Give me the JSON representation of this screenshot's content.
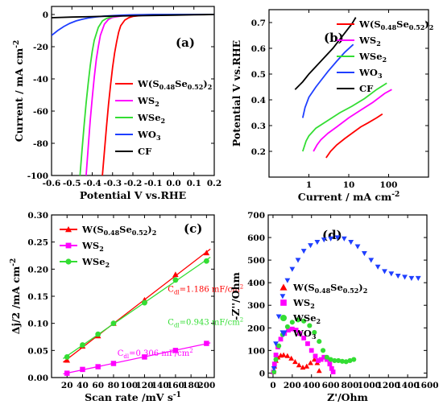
{
  "colors": {
    "W(S0.48Se0.52)2": "#ff0000",
    "WS2": "#ff00ff",
    "WSe2": "#33dd33",
    "WO3": "#1f3fff",
    "CF": "#000000"
  },
  "chart_data": [
    {
      "panel": "(a)",
      "type": "line",
      "xlabel": "Potential V vs.RHE",
      "ylabel": "Current / mA cm",
      "ylabel_sup": "-2",
      "xlim": [
        -0.6,
        0.2
      ],
      "ylim": [
        -100,
        5
      ],
      "xticks": [
        "-0.6",
        "-0.5",
        "-0.4",
        "-0.3",
        "-0.2",
        "-0.1",
        "0.0",
        "0.1",
        "0.2"
      ],
      "yticks": [
        "0",
        "-20",
        "-40",
        "-60",
        "-80",
        "-100"
      ],
      "legend": [
        "W(S0.48Se0.52)2",
        "WS2",
        "WSe2",
        "WO3",
        "CF"
      ],
      "series": [
        {
          "name": "W(S0.48Se0.52)2",
          "x": [
            -0.35,
            -0.34,
            -0.33,
            -0.32,
            -0.31,
            -0.3,
            -0.29,
            -0.28,
            -0.27,
            -0.26,
            -0.24,
            -0.22,
            -0.2,
            -0.15,
            -0.1,
            0.0,
            0.2
          ],
          "y": [
            -100,
            -85,
            -70,
            -56,
            -44,
            -33,
            -24,
            -17,
            -11,
            -7,
            -3.5,
            -2,
            -1.2,
            -0.5,
            -0.2,
            0,
            0
          ]
        },
        {
          "name": "WS2",
          "x": [
            -0.43,
            -0.42,
            -0.41,
            -0.4,
            -0.39,
            -0.38,
            -0.37,
            -0.36,
            -0.34,
            -0.32,
            -0.3,
            -0.25,
            -0.2,
            -0.1,
            0.0,
            0.2
          ],
          "y": [
            -100,
            -83,
            -66,
            -52,
            -39,
            -28,
            -20,
            -13,
            -6,
            -3,
            -1.8,
            -0.8,
            -0.4,
            -0.1,
            0,
            0
          ]
        },
        {
          "name": "WSe2",
          "x": [
            -0.46,
            -0.45,
            -0.44,
            -0.43,
            -0.42,
            -0.41,
            -0.4,
            -0.39,
            -0.37,
            -0.35,
            -0.33,
            -0.3,
            -0.25,
            -0.2,
            -0.1,
            0.0,
            0.2
          ],
          "y": [
            -100,
            -84,
            -69,
            -55,
            -43,
            -32,
            -23,
            -16,
            -8,
            -4,
            -2.5,
            -1.3,
            -0.6,
            -0.3,
            -0.1,
            0,
            0
          ]
        },
        {
          "name": "WO3",
          "x": [
            -0.6,
            -0.57,
            -0.54,
            -0.51,
            -0.48,
            -0.45,
            -0.42,
            -0.38,
            -0.34,
            -0.3,
            -0.25,
            -0.2,
            -0.1,
            0.0,
            0.2
          ],
          "y": [
            -13,
            -10,
            -7.5,
            -5.5,
            -4,
            -3,
            -2.2,
            -1.5,
            -1,
            -0.7,
            -0.4,
            -0.2,
            0,
            0,
            0
          ]
        },
        {
          "name": "CF",
          "x": [
            -0.6,
            -0.5,
            -0.4,
            -0.3,
            -0.2,
            -0.1,
            0.0,
            0.1,
            0.2
          ],
          "y": [
            -2,
            -1.6,
            -1.3,
            -1,
            -0.8,
            -0.6,
            -0.4,
            -0.2,
            0
          ]
        }
      ]
    },
    {
      "panel": "(b)",
      "type": "line",
      "xscale": "log",
      "xlabel": "Current / mA cm",
      "xlabel_sup": "-2",
      "ylabel": "Potential V vs.RHE",
      "xlim": [
        0.1,
        1000
      ],
      "ylim": [
        0.1,
        0.75
      ],
      "xticks": [
        "1",
        "10",
        "100"
      ],
      "yticks": [
        "0.2",
        "0.3",
        "0.4",
        "0.5",
        "0.6",
        "0.7"
      ],
      "legend": [
        "W(S0.48Se0.52)2",
        "WS2",
        "WSe2",
        "WO3",
        "CF"
      ],
      "series": [
        {
          "name": "W(S0.48Se0.52)2",
          "x": [
            2.7,
            3.5,
            5,
            8,
            12,
            20,
            30,
            50,
            70
          ],
          "y": [
            0.175,
            0.2,
            0.225,
            0.25,
            0.27,
            0.295,
            0.31,
            0.33,
            0.345
          ]
        },
        {
          "name": "WS2",
          "x": [
            1.3,
            1.6,
            2,
            3,
            5,
            10,
            20,
            40,
            80,
            120
          ],
          "y": [
            0.2,
            0.225,
            0.245,
            0.27,
            0.295,
            0.33,
            0.36,
            0.39,
            0.425,
            0.44
          ]
        },
        {
          "name": "WSe2",
          "x": [
            0.7,
            0.85,
            1,
            1.5,
            3,
            6,
            12,
            25,
            50,
            90
          ],
          "y": [
            0.2,
            0.24,
            0.26,
            0.29,
            0.32,
            0.35,
            0.375,
            0.405,
            0.44,
            0.465
          ]
        },
        {
          "name": "WO3",
          "x": [
            0.7,
            0.8,
            1,
            1.5,
            2,
            3,
            5,
            8,
            13
          ],
          "y": [
            0.33,
            0.37,
            0.41,
            0.45,
            0.475,
            0.51,
            0.55,
            0.585,
            0.615
          ]
        },
        {
          "name": "CF",
          "x": [
            0.45,
            0.7,
            1,
            2,
            4,
            8,
            12,
            15
          ],
          "y": [
            0.44,
            0.47,
            0.5,
            0.55,
            0.6,
            0.66,
            0.695,
            0.72
          ]
        }
      ]
    },
    {
      "panel": "(c)",
      "type": "scatter",
      "xlabel": "Scan rate /mV s",
      "xlabel_sup": "-1",
      "ylabel": "Δj/2 /mA cm",
      "ylabel_sup": "-2",
      "xlim": [
        0,
        210
      ],
      "ylim": [
        0,
        0.3
      ],
      "xticks": [
        "20",
        "40",
        "60",
        "80",
        "100",
        "120",
        "140",
        "160",
        "180",
        "200"
      ],
      "yticks": [
        "0.00",
        "0.05",
        "0.10",
        "0.15",
        "0.20",
        "0.25",
        "0.30"
      ],
      "legend": [
        "W(S0.48Se0.52)2",
        "WS2",
        "WSe2"
      ],
      "annotations": [
        {
          "sub": "dl",
          "text": "=1.186 mF/cm",
          "sup": "2",
          "series": "W(S0.48Se0.52)2"
        },
        {
          "sub": "dl",
          "text": "=0.943 mF/cm",
          "sup": "2",
          "series": "WSe2"
        },
        {
          "sub": "dl",
          "text": "=0.306 mF/cm",
          "sup": "2",
          "series": "WS2"
        }
      ],
      "series": [
        {
          "name": "W(S0.48Se0.52)2",
          "marker": "triangle",
          "x": [
            20,
            40,
            60,
            80,
            120,
            160,
            200
          ],
          "y": [
            0.032,
            0.058,
            0.077,
            0.1,
            0.143,
            0.19,
            0.23
          ]
        },
        {
          "name": "WS2",
          "marker": "square",
          "x": [
            20,
            40,
            60,
            80,
            120,
            160,
            200
          ],
          "y": [
            0.008,
            0.015,
            0.02,
            0.026,
            0.038,
            0.05,
            0.063
          ]
        },
        {
          "name": "WSe2",
          "marker": "circle",
          "x": [
            20,
            40,
            60,
            80,
            120,
            160,
            200
          ],
          "y": [
            0.038,
            0.06,
            0.08,
            0.1,
            0.138,
            0.18,
            0.215
          ]
        }
      ]
    },
    {
      "panel": "(d)",
      "type": "scatter",
      "xlabel": "Z'/Ohm",
      "ylabel": "-Z''/Ohm",
      "xlim": [
        -50,
        1600
      ],
      "ylim": [
        -20,
        700
      ],
      "xticks": [
        "0",
        "200",
        "400",
        "600",
        "800",
        "1000",
        "1200",
        "1400",
        "1600"
      ],
      "yticks": [
        "0",
        "100",
        "200",
        "300",
        "400",
        "500",
        "600",
        "700"
      ],
      "legend": [
        "W(S0.48Se0.52)2",
        "WS2",
        "WSe2",
        "WO3"
      ],
      "series": [
        {
          "name": "W(S0.48Se0.52)2",
          "marker": "triangle",
          "x": [
            5,
            15,
            30,
            50,
            80,
            110,
            150,
            190,
            230,
            270,
            310,
            350,
            390,
            430,
            460,
            480
          ],
          "y": [
            5,
            30,
            55,
            70,
            78,
            80,
            76,
            65,
            50,
            35,
            25,
            30,
            45,
            60,
            45,
            10
          ]
        },
        {
          "name": "WS2",
          "marker": "square",
          "x": [
            5,
            15,
            30,
            50,
            80,
            120,
            160,
            200,
            240,
            280,
            320,
            360,
            400,
            440,
            470,
            500,
            530,
            560,
            590,
            610,
            625
          ],
          "y": [
            5,
            40,
            80,
            115,
            150,
            175,
            190,
            195,
            190,
            175,
            155,
            130,
            100,
            75,
            55,
            60,
            70,
            60,
            40,
            20,
            5
          ]
        },
        {
          "name": "WSe2",
          "marker": "circle",
          "x": [
            10,
            30,
            60,
            100,
            150,
            200,
            260,
            320,
            380,
            430,
            480,
            520,
            560,
            600,
            640,
            680,
            720,
            760,
            800,
            840
          ],
          "y": [
            5,
            60,
            120,
            170,
            205,
            225,
            235,
            230,
            210,
            180,
            140,
            100,
            70,
            60,
            55,
            55,
            52,
            50,
            55,
            60
          ]
        },
        {
          "name": "WO3",
          "marker": "inverted-triangle",
          "x": [
            10,
            30,
            60,
            100,
            150,
            200,
            260,
            320,
            390,
            460,
            530,
            600,
            670,
            740,
            810,
            880,
            950,
            1020,
            1090,
            1160,
            1230,
            1300,
            1370,
            1440,
            1510
          ],
          "y": [
            20,
            130,
            250,
            340,
            410,
            460,
            500,
            540,
            565,
            580,
            590,
            595,
            600,
            595,
            580,
            560,
            530,
            500,
            470,
            450,
            440,
            430,
            425,
            420,
            420
          ]
        }
      ]
    }
  ]
}
